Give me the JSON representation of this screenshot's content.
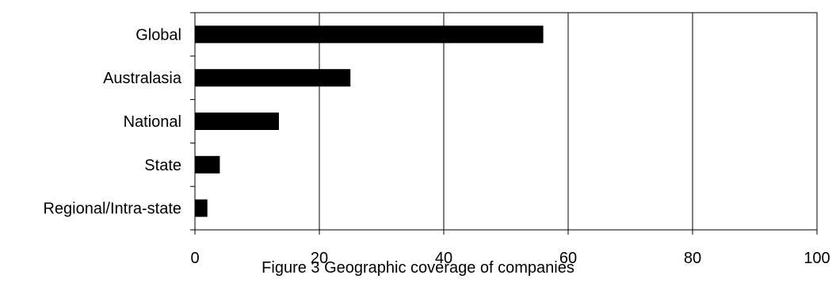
{
  "chart_data": {
    "type": "bar",
    "orientation": "horizontal",
    "categories": [
      "Global",
      "Australasia",
      "National",
      "State",
      "Regional/Intra-state"
    ],
    "values": [
      56,
      25,
      13.5,
      4,
      2
    ],
    "xlim": [
      0,
      100
    ],
    "xticks": [
      "0",
      "20",
      "40",
      "60",
      "80",
      "100"
    ],
    "grid": true,
    "bar_color": "#000000",
    "caption": "Figure 3 Geographic coverage of companies"
  }
}
